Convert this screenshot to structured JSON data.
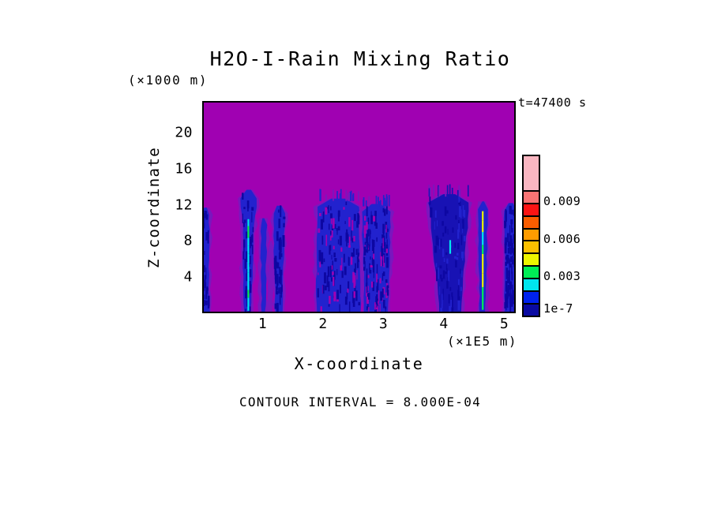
{
  "chart_data": {
    "type": "filled-contour",
    "title": "H2O-I-Rain Mixing Ratio",
    "time_label": "t=47400 s",
    "xlabel": "X-coordinate",
    "x_unit_label": "(×1E5 m)",
    "ylabel": "Z-coordinate",
    "y_unit_label": "(×1000 m)",
    "contour_note": "CONTOUR INTERVAL = 8.000E-04",
    "x_ticks": [
      1,
      2,
      3,
      4,
      5
    ],
    "y_ticks": [
      4,
      8,
      12,
      16,
      20
    ],
    "xlim": [
      0,
      5.19
    ],
    "ylim": [
      0,
      23.5
    ],
    "grid": false,
    "field_colors": {
      "background": "#A001B2",
      "fringe_violet": "#7A16BE",
      "shaft_blue": "#2222CE",
      "shaft_navy": "#0D07A2",
      "core_cyan": "#00E6EE",
      "core_green": "#00EE55",
      "core_yellow": "#EDF500"
    },
    "colorbar": {
      "position": "right",
      "colors": [
        "#F9B6C1",
        "#F87474",
        "#FB1414",
        "#FA5D00",
        "#FE9C00",
        "#FBC000",
        "#EDF500",
        "#00EE55",
        "#00E6EE",
        "#0022EE",
        "#0A0AA2"
      ],
      "top_segment_scale": 2.7,
      "labels": [
        {
          "text": "0.009",
          "boundary": 2,
          "dy": 0
        },
        {
          "text": "0.006",
          "boundary": 5,
          "dy": 0
        },
        {
          "text": "0.003",
          "boundary": 8,
          "dy": 0
        },
        {
          "text": "1e-7",
          "boundary": 11,
          "dy": -7
        }
      ]
    },
    "rain_shafts": [
      {
        "x_top": 0.02,
        "hw_top": 0.07,
        "x_bot": 0.0,
        "hw_bot": 0.09,
        "z_top": 11.7,
        "fill": "#2222CE",
        "speckle": 1,
        "fringe": 1
      },
      {
        "x_top": 0.75,
        "hw_top": 0.11,
        "x_bot": 0.73,
        "hw_bot": 0.06,
        "z_top": 13.7,
        "bulb": true,
        "fill": "#2222CE",
        "speckle": 1,
        "fringe": 1,
        "core": {
          "x": 0.745,
          "z1": 0.1,
          "z2": 10.4,
          "colors": [
            "#00E6EE",
            "#00EE55"
          ]
        }
      },
      {
        "x_top": 1.0,
        "hw_top": 0.05,
        "x_bot": 1.0,
        "hw_bot": 0.035,
        "z_top": 10.5,
        "fill": "#2222CE",
        "speckle": 0,
        "fringe": 1
      },
      {
        "x_top": 1.12,
        "hw_top": 0.05,
        "x_bot": 1.11,
        "hw_bot": 0.04,
        "z_top": 8.0,
        "violet": true,
        "fringe": 0,
        "speckle": 0
      },
      {
        "x_top": 1.26,
        "hw_top": 0.1,
        "x_bot": 1.255,
        "hw_bot": 0.055,
        "z_top": 11.9,
        "fill": "#2222CE",
        "speckle": 1,
        "fringe": 1
      },
      {
        "x_top": 2.25,
        "hw_top": 0.35,
        "x_bot": 2.25,
        "hw_bot": 0.37,
        "z_top": 12.7,
        "fill": "#2222CE",
        "speckle": 3,
        "fringe": 2,
        "fuzz": true
      },
      {
        "x_top": 2.88,
        "hw_top": 0.24,
        "x_bot": 2.89,
        "hw_bot": 0.2,
        "z_top": 12.1,
        "fill": "#2222CE",
        "speckle": 3,
        "fringe": 2,
        "fuzz": true
      },
      {
        "x_top": 4.1,
        "hw_top": 0.35,
        "x_bot": 4.12,
        "hw_bot": 0.175,
        "z_top": 13.2,
        "fill": "#1812B4",
        "speckle": 2,
        "fringe": 1,
        "fuzz": true,
        "dash_colors": [
          "#2222CE",
          "#0D07A2"
        ],
        "core": {
          "x": 4.12,
          "z1": 1.5,
          "z2": 9.5,
          "colors": [
            "#00E6EE"
          ],
          "dashed": true
        }
      },
      {
        "x_top": 4.67,
        "hw_top": 0.08,
        "x_bot": 4.66,
        "hw_bot": 0.05,
        "z_top": 12.4,
        "fill": "#2222CE",
        "speckle": 0,
        "fringe": 1,
        "core": {
          "x": 4.665,
          "z1": 0.2,
          "z2": 11.3,
          "colors": [
            "#00E6EE",
            "#EDF500",
            "#00EE55"
          ]
        }
      },
      {
        "x_top": 5.13,
        "hw_top": 0.11,
        "x_bot": 5.12,
        "hw_bot": 0.09,
        "z_top": 12.2,
        "fill": "#2222CE",
        "speckle": 2,
        "fringe": 1
      }
    ]
  }
}
